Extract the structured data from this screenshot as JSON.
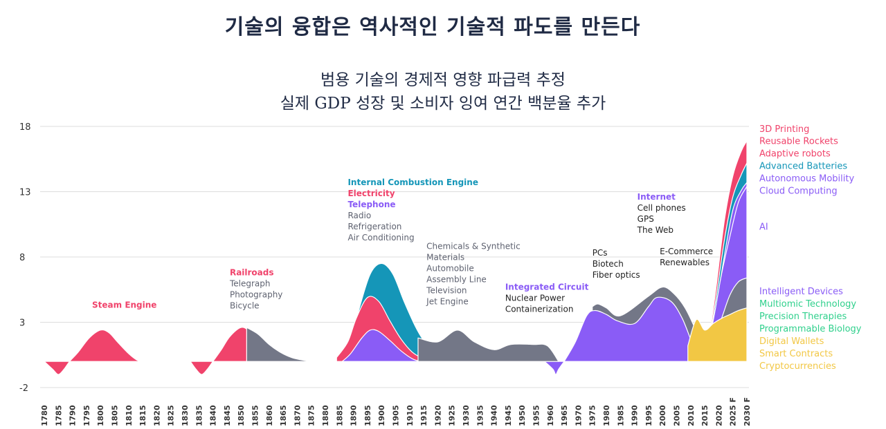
{
  "title": "기술의 융합은 역사적인 기술적 파도를 만든다",
  "subtitle_line1": "범용 기술의 경제적 영향 파급력 추정",
  "subtitle_line2": "실제 GDP 성장 및 소비자 잉여 연간 백분율 추가",
  "colors": {
    "red": "#f0436b",
    "blue": "#1596b8",
    "purple": "#8a5cf6",
    "gray": "#737787",
    "dark_gray": "#5e6270",
    "yellow": "#f2c744",
    "green": "#2fd08c",
    "navy": "#1f2a44",
    "text": "#222222",
    "axis_text": "#333333",
    "grid": "#dcdcdc"
  },
  "chart_data": {
    "type": "area",
    "xlabel": "",
    "ylabel": "",
    "ylim": [
      -2,
      18
    ],
    "yticks": [
      18,
      13,
      8,
      3,
      -2
    ],
    "grid": true,
    "legend_position": "right",
    "x_ticks": [
      "1780",
      "1785",
      "1790",
      "1795",
      "1800",
      "1805",
      "1810",
      "1815",
      "1820",
      "1825",
      "1830",
      "1835",
      "1840",
      "1845",
      "1850",
      "1855",
      "1860",
      "1865",
      "1870",
      "1875",
      "1880",
      "1885",
      "1890",
      "1895",
      "1900",
      "1905",
      "1910",
      "1915",
      "1920",
      "1925",
      "1930",
      "1935",
      "1940",
      "1945",
      "1950",
      "1955",
      "1960",
      "1965",
      "1970",
      "1975",
      "1980",
      "1985",
      "1990",
      "1995",
      "2000",
      "2005",
      "2010",
      "2015",
      "2020",
      "2025 F",
      "2030 F"
    ],
    "series": [
      {
        "name": "Steam Engine",
        "color": "red",
        "points": [
          [
            1780,
            0
          ],
          [
            1783,
            -0.6
          ],
          [
            1785,
            -1
          ],
          [
            1787,
            -0.6
          ],
          [
            1789,
            0
          ],
          [
            1792,
            0.7
          ],
          [
            1796,
            1.8
          ],
          [
            1800,
            2.4
          ],
          [
            1803,
            2.2
          ],
          [
            1806,
            1.5
          ],
          [
            1810,
            0.6
          ],
          [
            1813,
            0.1
          ],
          [
            1815,
            0
          ]
        ]
      },
      {
        "name": "Railroads wave (Telegraph, Photography, Bicycle)",
        "color": "red",
        "points": [
          [
            1832,
            0
          ],
          [
            1834,
            -0.6
          ],
          [
            1836,
            -1
          ],
          [
            1838,
            -0.6
          ],
          [
            1840,
            0
          ],
          [
            1843,
            0.9
          ],
          [
            1846,
            1.9
          ],
          [
            1850,
            2.6
          ],
          [
            1853,
            2.3
          ],
          [
            1856,
            1.5
          ],
          [
            1859,
            0.6
          ],
          [
            1862,
            0.1
          ],
          [
            1863,
            0
          ]
        ]
      },
      {
        "name": "Railroads wave (gray band)",
        "color": "gray",
        "points": [
          [
            1852,
            2.6
          ],
          [
            1856,
            2.1
          ],
          [
            1860,
            1.3
          ],
          [
            1864,
            0.7
          ],
          [
            1868,
            0.3
          ],
          [
            1872,
            0.1
          ],
          [
            1876,
            0
          ]
        ]
      },
      {
        "name": "Telephone (band)",
        "color": "purple",
        "points": [
          [
            1886,
            0
          ],
          [
            1889,
            0.6
          ],
          [
            1893,
            1.8
          ],
          [
            1896,
            2.4
          ],
          [
            1899,
            2.3
          ],
          [
            1903,
            1.6
          ],
          [
            1907,
            0.8
          ],
          [
            1911,
            0.2
          ],
          [
            1914,
            0
          ]
        ]
      },
      {
        "name": "Electricity (band)",
        "color": "red",
        "points": [
          [
            1884,
            0.3
          ],
          [
            1888,
            1.5
          ],
          [
            1891,
            3.3
          ],
          [
            1895,
            4.9
          ],
          [
            1899,
            4.6
          ],
          [
            1903,
            3.1
          ],
          [
            1907,
            1.7
          ],
          [
            1911,
            0.7
          ],
          [
            1915,
            0.2
          ],
          [
            1918,
            0
          ]
        ]
      },
      {
        "name": "Internal Combustion Engine (band)",
        "color": "blue",
        "points": [
          [
            1889,
            1.5
          ],
          [
            1892,
            4
          ],
          [
            1896,
            6.7
          ],
          [
            1900,
            7.5
          ],
          [
            1904,
            6.7
          ],
          [
            1908,
            4.6
          ],
          [
            1912,
            2.7
          ],
          [
            1915,
            1.6
          ],
          [
            1918,
            0.9
          ],
          [
            1922,
            0.3
          ],
          [
            1926,
            0
          ]
        ]
      },
      {
        "name": "Chemicals & Synthetic Materials wave (gray)",
        "color": "gray",
        "points": [
          [
            1913,
            1.8
          ],
          [
            1920,
            1.5
          ],
          [
            1927,
            2.4
          ],
          [
            1933,
            1.5
          ],
          [
            1940,
            0.9
          ],
          [
            1946,
            1.3
          ],
          [
            1954,
            1.3
          ],
          [
            1959,
            1.2
          ],
          [
            1963,
            0
          ]
        ]
      },
      {
        "name": "Integrated Circuit (dip)",
        "color": "purple",
        "points": [
          [
            1958,
            0
          ],
          [
            1961,
            -0.6
          ],
          [
            1962,
            -1
          ],
          [
            1963,
            -0.6
          ],
          [
            1965,
            0
          ]
        ]
      },
      {
        "name": "Integrated Circuit wave (purple)",
        "color": "purple",
        "points": [
          [
            1965,
            0
          ],
          [
            1969,
            1.5
          ],
          [
            1973,
            3.5
          ],
          [
            1976,
            3.9
          ],
          [
            1980,
            3.6
          ],
          [
            1984,
            3.1
          ],
          [
            1990,
            2.9
          ],
          [
            1995,
            4.2
          ],
          [
            1998,
            4.9
          ],
          [
            2003,
            4.6
          ],
          [
            2007,
            3.3
          ],
          [
            2011,
            1.2
          ],
          [
            2014,
            0.3
          ],
          [
            2016,
            0
          ]
        ]
      },
      {
        "name": "PCs / Internet wave (gray)",
        "color": "gray",
        "points": [
          [
            1975,
            4.2
          ],
          [
            1977,
            4.4
          ],
          [
            1980,
            4.1
          ],
          [
            1985,
            3.5
          ],
          [
            1995,
            5
          ],
          [
            2000,
            5.7
          ],
          [
            2004,
            5.2
          ],
          [
            2008,
            4.1
          ],
          [
            2012,
            2.3
          ],
          [
            2015,
            0.6
          ],
          [
            2017,
            0
          ]
        ]
      },
      {
        "name": "Digital Wallets / Smart Contracts / Cryptocurrencies",
        "color": "yellow",
        "points": [
          [
            2009,
            1.2
          ],
          [
            2012,
            3.2
          ],
          [
            2015,
            2.4
          ],
          [
            2018,
            2.9
          ],
          [
            2021,
            3.3
          ],
          [
            2024,
            3.6
          ],
          [
            2027,
            3.9
          ],
          [
            2030,
            4.1
          ]
        ]
      },
      {
        "name": "Intelligent Devices / Multiomic / Precision Therapies / Programmable Biology",
        "color": "gray",
        "points": [
          [
            2015,
            0.2
          ],
          [
            2018,
            1.6
          ],
          [
            2021,
            3.3
          ],
          [
            2024,
            5.1
          ],
          [
            2027,
            6.1
          ],
          [
            2030,
            6.4
          ]
        ]
      },
      {
        "name": "AI",
        "color": "purple",
        "points": [
          [
            2015,
            0.4
          ],
          [
            2018,
            3.1
          ],
          [
            2021,
            6.7
          ],
          [
            2024,
            9.6
          ],
          [
            2027,
            12.2
          ],
          [
            2030,
            13.4
          ]
        ]
      },
      {
        "name": "Autonomous Mobility / Cloud Computing",
        "color": "purple",
        "points": [
          [
            2016,
            0.6
          ],
          [
            2019,
            4.2
          ],
          [
            2022,
            8.1
          ],
          [
            2025,
            11.6
          ],
          [
            2028,
            13.1
          ],
          [
            2030,
            13.7
          ]
        ]
      },
      {
        "name": "Advanced Batteries",
        "color": "blue",
        "points": [
          [
            2016,
            0.7
          ],
          [
            2019,
            4.8
          ],
          [
            2022,
            9.3
          ],
          [
            2025,
            12.6
          ],
          [
            2028,
            14.3
          ],
          [
            2030,
            15.2
          ]
        ]
      },
      {
        "name": "3D Printing / Reusable Rockets / Adaptive robots",
        "color": "red",
        "points": [
          [
            2016,
            0.8
          ],
          [
            2019,
            5.6
          ],
          [
            2022,
            10.8
          ],
          [
            2025,
            14.2
          ],
          [
            2028,
            16.1
          ],
          [
            2030,
            16.9
          ]
        ]
      }
    ],
    "annotations": [
      {
        "year": 1797,
        "y": 4.1,
        "lines": [
          {
            "text": "Steam Engine",
            "color": "red",
            "bold": true
          }
        ]
      },
      {
        "year": 1846,
        "y": 6.6,
        "lines": [
          {
            "text": "Railroads",
            "color": "red",
            "bold": true
          },
          {
            "text": "Telegraph",
            "color": "dark_gray"
          },
          {
            "text": "Photography",
            "color": "dark_gray"
          },
          {
            "text": "Bicycle",
            "color": "dark_gray"
          }
        ]
      },
      {
        "year": 1888,
        "y": 13.5,
        "lines": [
          {
            "text": "Internal Combustion Engine",
            "color": "blue",
            "bold": true
          },
          {
            "text": "Electricity",
            "color": "red",
            "bold": true
          },
          {
            "text": "Telephone",
            "color": "purple",
            "bold": true
          },
          {
            "text": "Radio",
            "color": "dark_gray"
          },
          {
            "text": "Refrigeration",
            "color": "dark_gray"
          },
          {
            "text": "Air Conditioning",
            "color": "dark_gray"
          }
        ]
      },
      {
        "year": 1916,
        "y": 8.6,
        "lines": [
          {
            "text": "Chemicals & Synthetic",
            "color": "dark_gray"
          },
          {
            "text": "Materials",
            "color": "dark_gray"
          },
          {
            "text": "Automobile",
            "color": "dark_gray"
          },
          {
            "text": "Assembly Line",
            "color": "dark_gray"
          },
          {
            "text": "Television",
            "color": "dark_gray"
          },
          {
            "text": "Jet Engine",
            "color": "dark_gray"
          }
        ]
      },
      {
        "year": 1944,
        "y": 5.5,
        "lines": [
          {
            "text": "Integrated Circuit",
            "color": "purple",
            "bold": true
          },
          {
            "text": "Nuclear Power",
            "color": "text"
          },
          {
            "text": "Containerization",
            "color": "text"
          }
        ]
      },
      {
        "year": 1975,
        "y": 8.1,
        "lines": [
          {
            "text": "PCs",
            "color": "text"
          },
          {
            "text": "Biotech",
            "color": "text"
          },
          {
            "text": "Fiber optics",
            "color": "text"
          }
        ]
      },
      {
        "year": 1991,
        "y": 12.4,
        "lines": [
          {
            "text": "Internet",
            "color": "purple",
            "bold": true
          },
          {
            "text": "Cell phones",
            "color": "text"
          },
          {
            "text": "GPS",
            "color": "text"
          },
          {
            "text": "The Web",
            "color": "text"
          }
        ]
      },
      {
        "year": 1999,
        "y": 8.2,
        "lines": [
          {
            "text": "E-Commerce",
            "color": "text"
          },
          {
            "text": "Renewables",
            "color": "text"
          }
        ]
      }
    ],
    "legend": [
      {
        "text": "3D Printing",
        "color": "red",
        "y": 17.8
      },
      {
        "text": "Reusable Rockets",
        "color": "red",
        "y": 16.85
      },
      {
        "text": "Adaptive robots",
        "color": "red",
        "y": 15.9
      },
      {
        "text": "Advanced Batteries",
        "color": "blue",
        "y": 14.95
      },
      {
        "text": "Autonomous Mobility",
        "color": "purple",
        "y": 14.0
      },
      {
        "text": "Cloud Computing",
        "color": "purple",
        "y": 13.05
      },
      {
        "text": "AI",
        "color": "purple",
        "y": 10.3
      },
      {
        "text": "Intelligent Devices",
        "color": "purple",
        "y": 5.35
      },
      {
        "text": "Multiomic Technology",
        "color": "green",
        "y": 4.4
      },
      {
        "text": "Precision Therapies",
        "color": "green",
        "y": 3.45
      },
      {
        "text": "Programmable Biology",
        "color": "green",
        "y": 2.5
      },
      {
        "text": "Digital Wallets",
        "color": "yellow",
        "y": 1.55
      },
      {
        "text": "Smart Contracts",
        "color": "yellow",
        "y": 0.6
      },
      {
        "text": "Cryptocurrencies",
        "color": "yellow",
        "y": -0.35
      }
    ]
  }
}
